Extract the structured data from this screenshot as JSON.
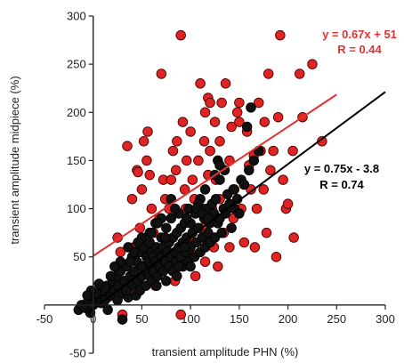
{
  "chart_data": {
    "type": "scatter",
    "xlabel": "transient amplitude PHN (%)",
    "ylabel": "transient amplitude midpiece  (%)",
    "xlim": [
      -50,
      300
    ],
    "ylim": [
      -50,
      300
    ],
    "x_ticks": [
      "-50",
      "0",
      "50",
      "100",
      "150",
      "200",
      "250",
      "300"
    ],
    "y_ticks": [
      "-50",
      "0",
      "50",
      "100",
      "150",
      "200",
      "250",
      "300"
    ],
    "grid": false,
    "series": [
      {
        "color": "#e02424",
        "edge": "#4a0000",
        "equation": "y = 0.67x + 51",
        "r": "R = 0.44",
        "fit": {
          "slope": 0.67,
          "intercept": 51,
          "x_range": [
            0,
            250
          ]
        },
        "points": [
          [
            -5,
            10
          ],
          [
            2,
            5
          ],
          [
            8,
            2
          ],
          [
            10,
            12
          ],
          [
            15,
            8
          ],
          [
            20,
            20
          ],
          [
            25,
            70
          ],
          [
            28,
            55
          ],
          [
            30,
            -10
          ],
          [
            35,
            165
          ],
          [
            38,
            10
          ],
          [
            40,
            110
          ],
          [
            42,
            60
          ],
          [
            45,
            140
          ],
          [
            46,
            138
          ],
          [
            48,
            80
          ],
          [
            50,
            120
          ],
          [
            52,
            170
          ],
          [
            55,
            150
          ],
          [
            56,
            180
          ],
          [
            58,
            135
          ],
          [
            60,
            100
          ],
          [
            62,
            75
          ],
          [
            65,
            40
          ],
          [
            68,
            90
          ],
          [
            70,
            240
          ],
          [
            72,
            130
          ],
          [
            74,
            110
          ],
          [
            75,
            60
          ],
          [
            78,
            100
          ],
          [
            80,
            130
          ],
          [
            82,
            160
          ],
          [
            84,
            25
          ],
          [
            86,
            170
          ],
          [
            88,
            60
          ],
          [
            90,
            280
          ],
          [
            90,
            -10
          ],
          [
            92,
            190
          ],
          [
            94,
            120
          ],
          [
            95,
            100
          ],
          [
            96,
            150
          ],
          [
            98,
            70
          ],
          [
            100,
            180
          ],
          [
            102,
            130
          ],
          [
            104,
            110
          ],
          [
            105,
            30
          ],
          [
            108,
            150
          ],
          [
            110,
            230
          ],
          [
            112,
            80
          ],
          [
            114,
            170
          ],
          [
            115,
            200
          ],
          [
            118,
            215
          ],
          [
            118,
            135
          ],
          [
            120,
            160
          ],
          [
            120,
            210
          ],
          [
            122,
            100
          ],
          [
            124,
            60
          ],
          [
            125,
            190
          ],
          [
            126,
            130
          ],
          [
            128,
            40
          ],
          [
            130,
            170
          ],
          [
            130,
            110
          ],
          [
            132,
            210
          ],
          [
            134,
            75
          ],
          [
            136,
            230
          ],
          [
            138,
            100
          ],
          [
            140,
            150
          ],
          [
            140,
            60
          ],
          [
            142,
            185
          ],
          [
            144,
            90
          ],
          [
            148,
            200
          ],
          [
            150,
            210
          ],
          [
            152,
            100
          ],
          [
            155,
            65
          ],
          [
            158,
            180
          ],
          [
            160,
            145
          ],
          [
            162,
            120
          ],
          [
            165,
            155
          ],
          [
            166,
            60
          ],
          [
            168,
            100
          ],
          [
            170,
            210
          ],
          [
            172,
            160
          ],
          [
            175,
            120
          ],
          [
            176,
            190
          ],
          [
            178,
            75
          ],
          [
            180,
            240
          ],
          [
            182,
            140
          ],
          [
            185,
            160
          ],
          [
            188,
            50
          ],
          [
            190,
            195
          ],
          [
            192,
            280
          ],
          [
            195,
            130
          ],
          [
            198,
            100
          ],
          [
            200,
            105
          ],
          [
            205,
            160
          ],
          [
            206,
            70
          ],
          [
            212,
            240
          ],
          [
            215,
            195
          ],
          [
            225,
            250
          ],
          [
            235,
            170
          ],
          [
            40,
            30
          ],
          [
            55,
            50
          ],
          [
            64,
            20
          ],
          [
            85,
            140
          ],
          [
            100,
            55
          ],
          [
            115,
            45
          ],
          [
            120,
            160
          ],
          [
            135,
            140
          ],
          [
            145,
            120
          ],
          [
            150,
            190
          ]
        ]
      },
      {
        "color": "#111111",
        "edge": "#000000",
        "equation": "y = 0.75x - 3.8",
        "r": "R = 0.74",
        "fit": {
          "slope": 0.75,
          "intercept": -3.8,
          "x_range": [
            -5,
            300
          ]
        },
        "points": [
          [
            -15,
            -5
          ],
          [
            -12,
            0
          ],
          [
            -8,
            -3
          ],
          [
            -5,
            5
          ],
          [
            -3,
            -8
          ],
          [
            0,
            0
          ],
          [
            2,
            8
          ],
          [
            5,
            10
          ],
          [
            8,
            3
          ],
          [
            10,
            15
          ],
          [
            12,
            5
          ],
          [
            14,
            20
          ],
          [
            15,
            -5
          ],
          [
            18,
            10
          ],
          [
            20,
            25
          ],
          [
            22,
            15
          ],
          [
            24,
            30
          ],
          [
            25,
            5
          ],
          [
            26,
            20
          ],
          [
            28,
            35
          ],
          [
            30,
            12
          ],
          [
            30,
            -15
          ],
          [
            32,
            25
          ],
          [
            34,
            40
          ],
          [
            35,
            18
          ],
          [
            36,
            8
          ],
          [
            38,
            30
          ],
          [
            40,
            20
          ],
          [
            40,
            50
          ],
          [
            42,
            35
          ],
          [
            44,
            10
          ],
          [
            45,
            45
          ],
          [
            46,
            25
          ],
          [
            48,
            55
          ],
          [
            48,
            15
          ],
          [
            50,
            30
          ],
          [
            50,
            70
          ],
          [
            52,
            40
          ],
          [
            52,
            60
          ],
          [
            54,
            20
          ],
          [
            55,
            50
          ],
          [
            55,
            35
          ],
          [
            56,
            45
          ],
          [
            58,
            30
          ],
          [
            58,
            65
          ],
          [
            60,
            40
          ],
          [
            60,
            55
          ],
          [
            60,
            25
          ],
          [
            62,
            50
          ],
          [
            62,
            35
          ],
          [
            64,
            45
          ],
          [
            65,
            60
          ],
          [
            65,
            20
          ],
          [
            66,
            30
          ],
          [
            68,
            55
          ],
          [
            68,
            40
          ],
          [
            70,
            50
          ],
          [
            70,
            70
          ],
          [
            72,
            35
          ],
          [
            72,
            60
          ],
          [
            74,
            45
          ],
          [
            75,
            80
          ],
          [
            75,
            25
          ],
          [
            76,
            55
          ],
          [
            78,
            40
          ],
          [
            78,
            65
          ],
          [
            80,
            50
          ],
          [
            80,
            90
          ],
          [
            82,
            35
          ],
          [
            82,
            70
          ],
          [
            84,
            55
          ],
          [
            85,
            45
          ],
          [
            86,
            75
          ],
          [
            86,
            30
          ],
          [
            88,
            60
          ],
          [
            88,
            95
          ],
          [
            90,
            50
          ],
          [
            90,
            80
          ],
          [
            92,
            65
          ],
          [
            92,
            40
          ],
          [
            94,
            85
          ],
          [
            95,
            55
          ],
          [
            96,
            70
          ],
          [
            98,
            100
          ],
          [
            98,
            45
          ],
          [
            100,
            60
          ],
          [
            100,
            85
          ],
          [
            102,
            75
          ],
          [
            104,
            50
          ],
          [
            105,
            95
          ],
          [
            106,
            65
          ],
          [
            108,
            80
          ],
          [
            110,
            55
          ],
          [
            110,
            110
          ],
          [
            112,
            70
          ],
          [
            114,
            90
          ],
          [
            115,
            60
          ],
          [
            116,
            100
          ],
          [
            118,
            75
          ],
          [
            120,
            85
          ],
          [
            120,
            65
          ],
          [
            122,
            105
          ],
          [
            124,
            95
          ],
          [
            125,
            70
          ],
          [
            126,
            110
          ],
          [
            128,
            85
          ],
          [
            130,
            90
          ],
          [
            130,
            130
          ],
          [
            132,
            75
          ],
          [
            134,
            100
          ],
          [
            135,
            140
          ],
          [
            136,
            95
          ],
          [
            138,
            115
          ],
          [
            140,
            105
          ],
          [
            142,
            80
          ],
          [
            144,
            120
          ],
          [
            145,
            100
          ],
          [
            148,
            110
          ],
          [
            150,
            95
          ],
          [
            152,
            130
          ],
          [
            155,
            125
          ],
          [
            158,
            185
          ],
          [
            160,
            140
          ],
          [
            162,
            205
          ],
          [
            165,
            150
          ],
          [
            170,
            160
          ],
          [
            125,
            135
          ],
          [
            128,
            150
          ],
          [
            130,
            145
          ],
          [
            115,
            120
          ],
          [
            108,
            105
          ],
          [
            96,
            90
          ],
          [
            84,
            100
          ],
          [
            70,
            90
          ],
          [
            64,
            85
          ],
          [
            58,
            75
          ],
          [
            50,
            40
          ],
          [
            46,
            65
          ],
          [
            42,
            55
          ],
          [
            38,
            45
          ],
          [
            36,
            60
          ],
          [
            34,
            15
          ],
          [
            28,
            45
          ],
          [
            22,
            40
          ],
          [
            18,
            30
          ],
          [
            12,
            18
          ],
          [
            6,
            22
          ],
          [
            3,
            12
          ],
          [
            -2,
            15
          ],
          [
            -6,
            10
          ],
          [
            60,
            75
          ],
          [
            66,
            85
          ],
          [
            74,
            70
          ],
          [
            80,
            110
          ],
          [
            88,
            40
          ],
          [
            94,
            60
          ],
          [
            100,
            40
          ],
          [
            106,
            100
          ],
          [
            112,
            95
          ],
          [
            118,
            90
          ]
        ]
      }
    ]
  }
}
